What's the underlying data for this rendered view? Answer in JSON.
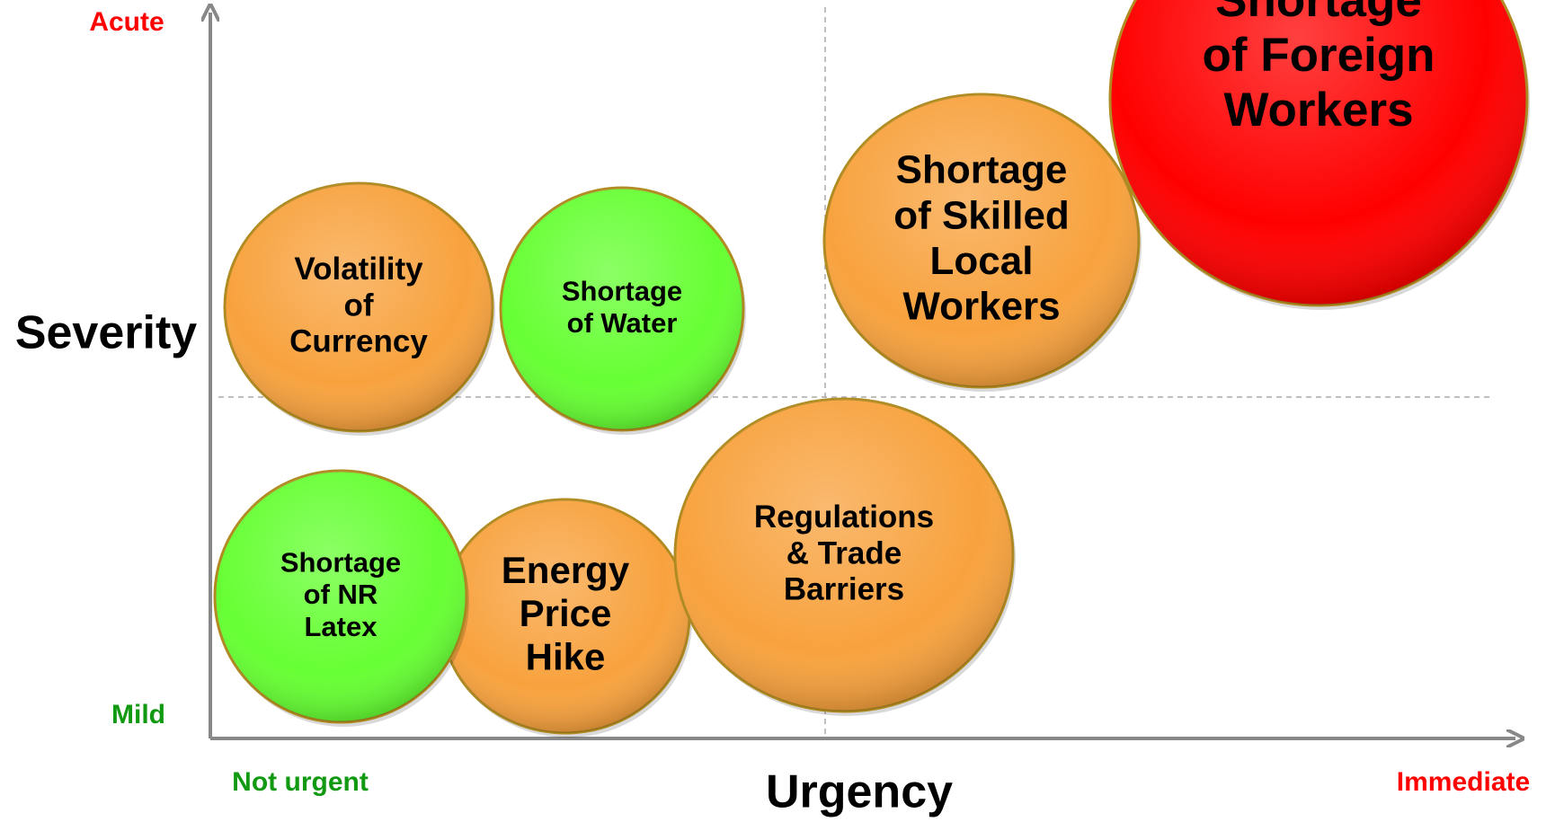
{
  "axes": {
    "y_title": "Severity",
    "x_title": "Urgency",
    "y_top": "Acute",
    "y_bottom": "Mild",
    "x_left": "Not urgent",
    "x_right": "Immediate"
  },
  "nodes": [
    {
      "lines": [
        "Shortage",
        "of Foreign",
        "Workers"
      ],
      "color": "#ff0000"
    },
    {
      "lines": [
        "Shortage",
        "of Skilled",
        "Local",
        "Workers"
      ],
      "color": "#f8a23e"
    },
    {
      "lines": [
        "Volatility",
        "of",
        "Currency"
      ],
      "color": "#f8a23e"
    },
    {
      "lines": [
        "Shortage",
        "of Water"
      ],
      "color": "#66ff33"
    },
    {
      "lines": [
        "Energy",
        "Price",
        "Hike"
      ],
      "color": "#f8a23e"
    },
    {
      "lines": [
        "Regulations",
        "& Trade",
        "Barriers"
      ],
      "color": "#f8a23e"
    },
    {
      "lines": [
        "Shortage",
        "of NR",
        "Latex"
      ],
      "color": "#66ff33"
    }
  ]
}
